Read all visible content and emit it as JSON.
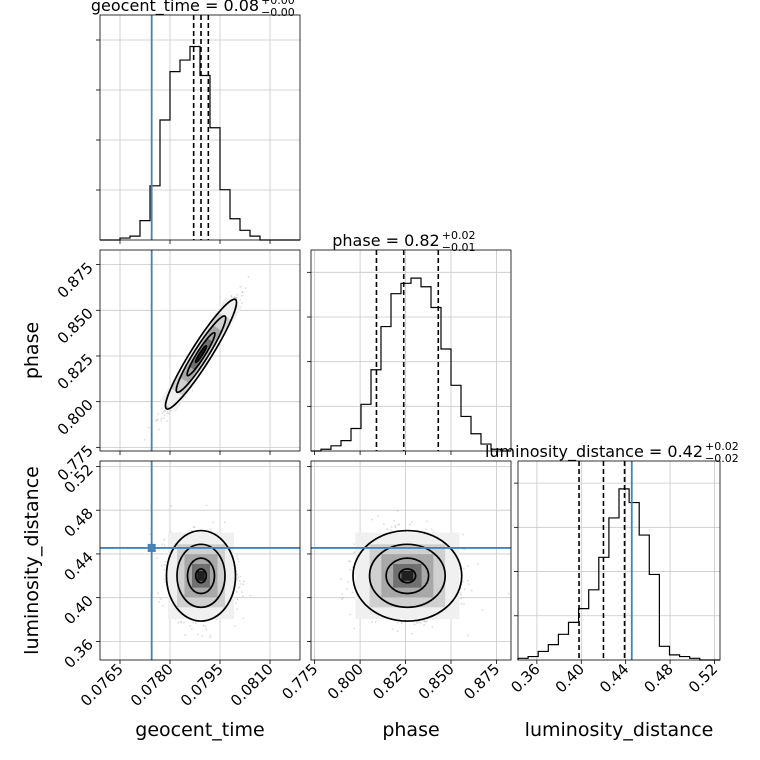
{
  "chart_data": {
    "type": "corner",
    "parameters": [
      "geocent_time",
      "phase",
      "luminosity_distance"
    ],
    "xlabels": [
      "geocent_time",
      "phase",
      "luminosity_distance"
    ],
    "ylabels": [
      "",
      "phase",
      "luminosity_distance"
    ],
    "titles": [
      {
        "name": "geocent_time",
        "median": "0.08",
        "plus": "+0.00",
        "minus": "−0.00"
      },
      {
        "name": "phase",
        "median": "0.82",
        "plus": "+0.02",
        "minus": "−0.01"
      },
      {
        "name": "luminosity_distance",
        "median": "0.42",
        "plus": "+0.02",
        "minus": "−0.02"
      }
    ],
    "ranges": [
      [
        0.0759,
        0.0819
      ],
      [
        0.773,
        0.883
      ],
      [
        0.343,
        0.525
      ]
    ],
    "ticks": [
      {
        "values": [
          0.0765,
          0.078,
          0.0795,
          0.081
        ],
        "labels": [
          "0.0765",
          "0.0780",
          "0.0795",
          "0.0810"
        ]
      },
      {
        "values": [
          0.775,
          0.8,
          0.825,
          0.85,
          0.875
        ],
        "labels": [
          "0.775",
          "0.800",
          "0.825",
          "0.850",
          "0.875"
        ]
      },
      {
        "values": [
          0.36,
          0.4,
          0.44,
          0.48,
          0.52
        ],
        "labels": [
          "0.36",
          "0.40",
          "0.44",
          "0.48",
          "0.52"
        ]
      }
    ],
    "truths": [
      0.07745,
      null,
      0.4455
    ],
    "truth_color": "#4682b4",
    "quantiles": [
      [
        0.07871,
        0.07893,
        0.07915
      ],
      [
        0.809,
        0.824,
        0.843
      ],
      [
        0.398,
        0.42,
        0.439
      ]
    ],
    "histograms": [
      {
        "edges_range": [
          0.0759,
          0.0819
        ],
        "counts": [
          0,
          0,
          1,
          2,
          10,
          28,
          62,
          87,
          93,
          100,
          85,
          58,
          26,
          11,
          5,
          2,
          0,
          0,
          0,
          0
        ]
      },
      {
        "edges_range": [
          0.773,
          0.883
        ],
        "counts": [
          0,
          1,
          3,
          6,
          13,
          27,
          47,
          72,
          91,
          97,
          100,
          95,
          83,
          59,
          38,
          20,
          10,
          4,
          1,
          0
        ]
      },
      {
        "edges_range": [
          0.343,
          0.525
        ],
        "counts": [
          1,
          2,
          5,
          9,
          15,
          22,
          30,
          41,
          60,
          83,
          100,
          92,
          73,
          50,
          8,
          3,
          2,
          1,
          0,
          0
        ]
      }
    ],
    "grid": true,
    "colors": {
      "hist": "#000000",
      "quantile": "#000000",
      "points": "#999999",
      "contour": "#000000"
    }
  }
}
